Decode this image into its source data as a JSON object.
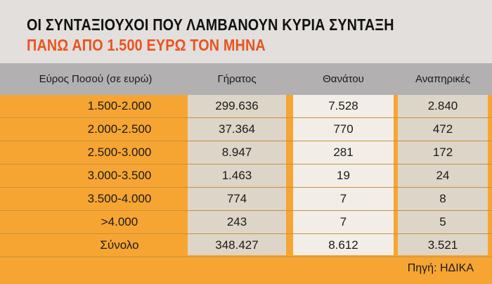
{
  "chart_data": {
    "type": "table",
    "title_line1": "ΟΙ ΣΥΝΤΑΞΙΟΥΧΟΙ ΠΟΥ ΛΑΜΒΑΝΟΥΝ ΚΥΡΙΑ ΣΥΝΤΑΞΗ",
    "title_line2": "ΠΑΝΩ ΑΠΟ 1.500 ΕΥΡΩ ΤΟΝ ΜΗΝΑ",
    "columns": [
      "Εύρος Ποσού (σε ευρώ)",
      "Γήρατος",
      "Θανάτου",
      "Αναπηρικές"
    ],
    "rows": [
      [
        "1.500-2.000",
        "299.636",
        "7.528",
        "2.840"
      ],
      [
        "2.000-2.500",
        "37.364",
        "770",
        "472"
      ],
      [
        "2.500-3.000",
        "8.947",
        "281",
        "172"
      ],
      [
        "3.000-3.500",
        "1.463",
        "19",
        "24"
      ],
      [
        "3.500-4.000",
        "774",
        "7",
        "8"
      ],
      [
        ">4.000",
        "243",
        "7",
        "5"
      ],
      [
        "Σύνολο",
        "348.427",
        "8.612",
        "3.521"
      ]
    ],
    "source": "Πηγή: ΗΔΙΚΑ"
  },
  "colors": {
    "title_accent": "#e8541f",
    "orange_band": "#f6a533",
    "header_grey": "#b2b0b0",
    "column_beige": "#ddd5c7",
    "column_light": "#f2eee7"
  }
}
